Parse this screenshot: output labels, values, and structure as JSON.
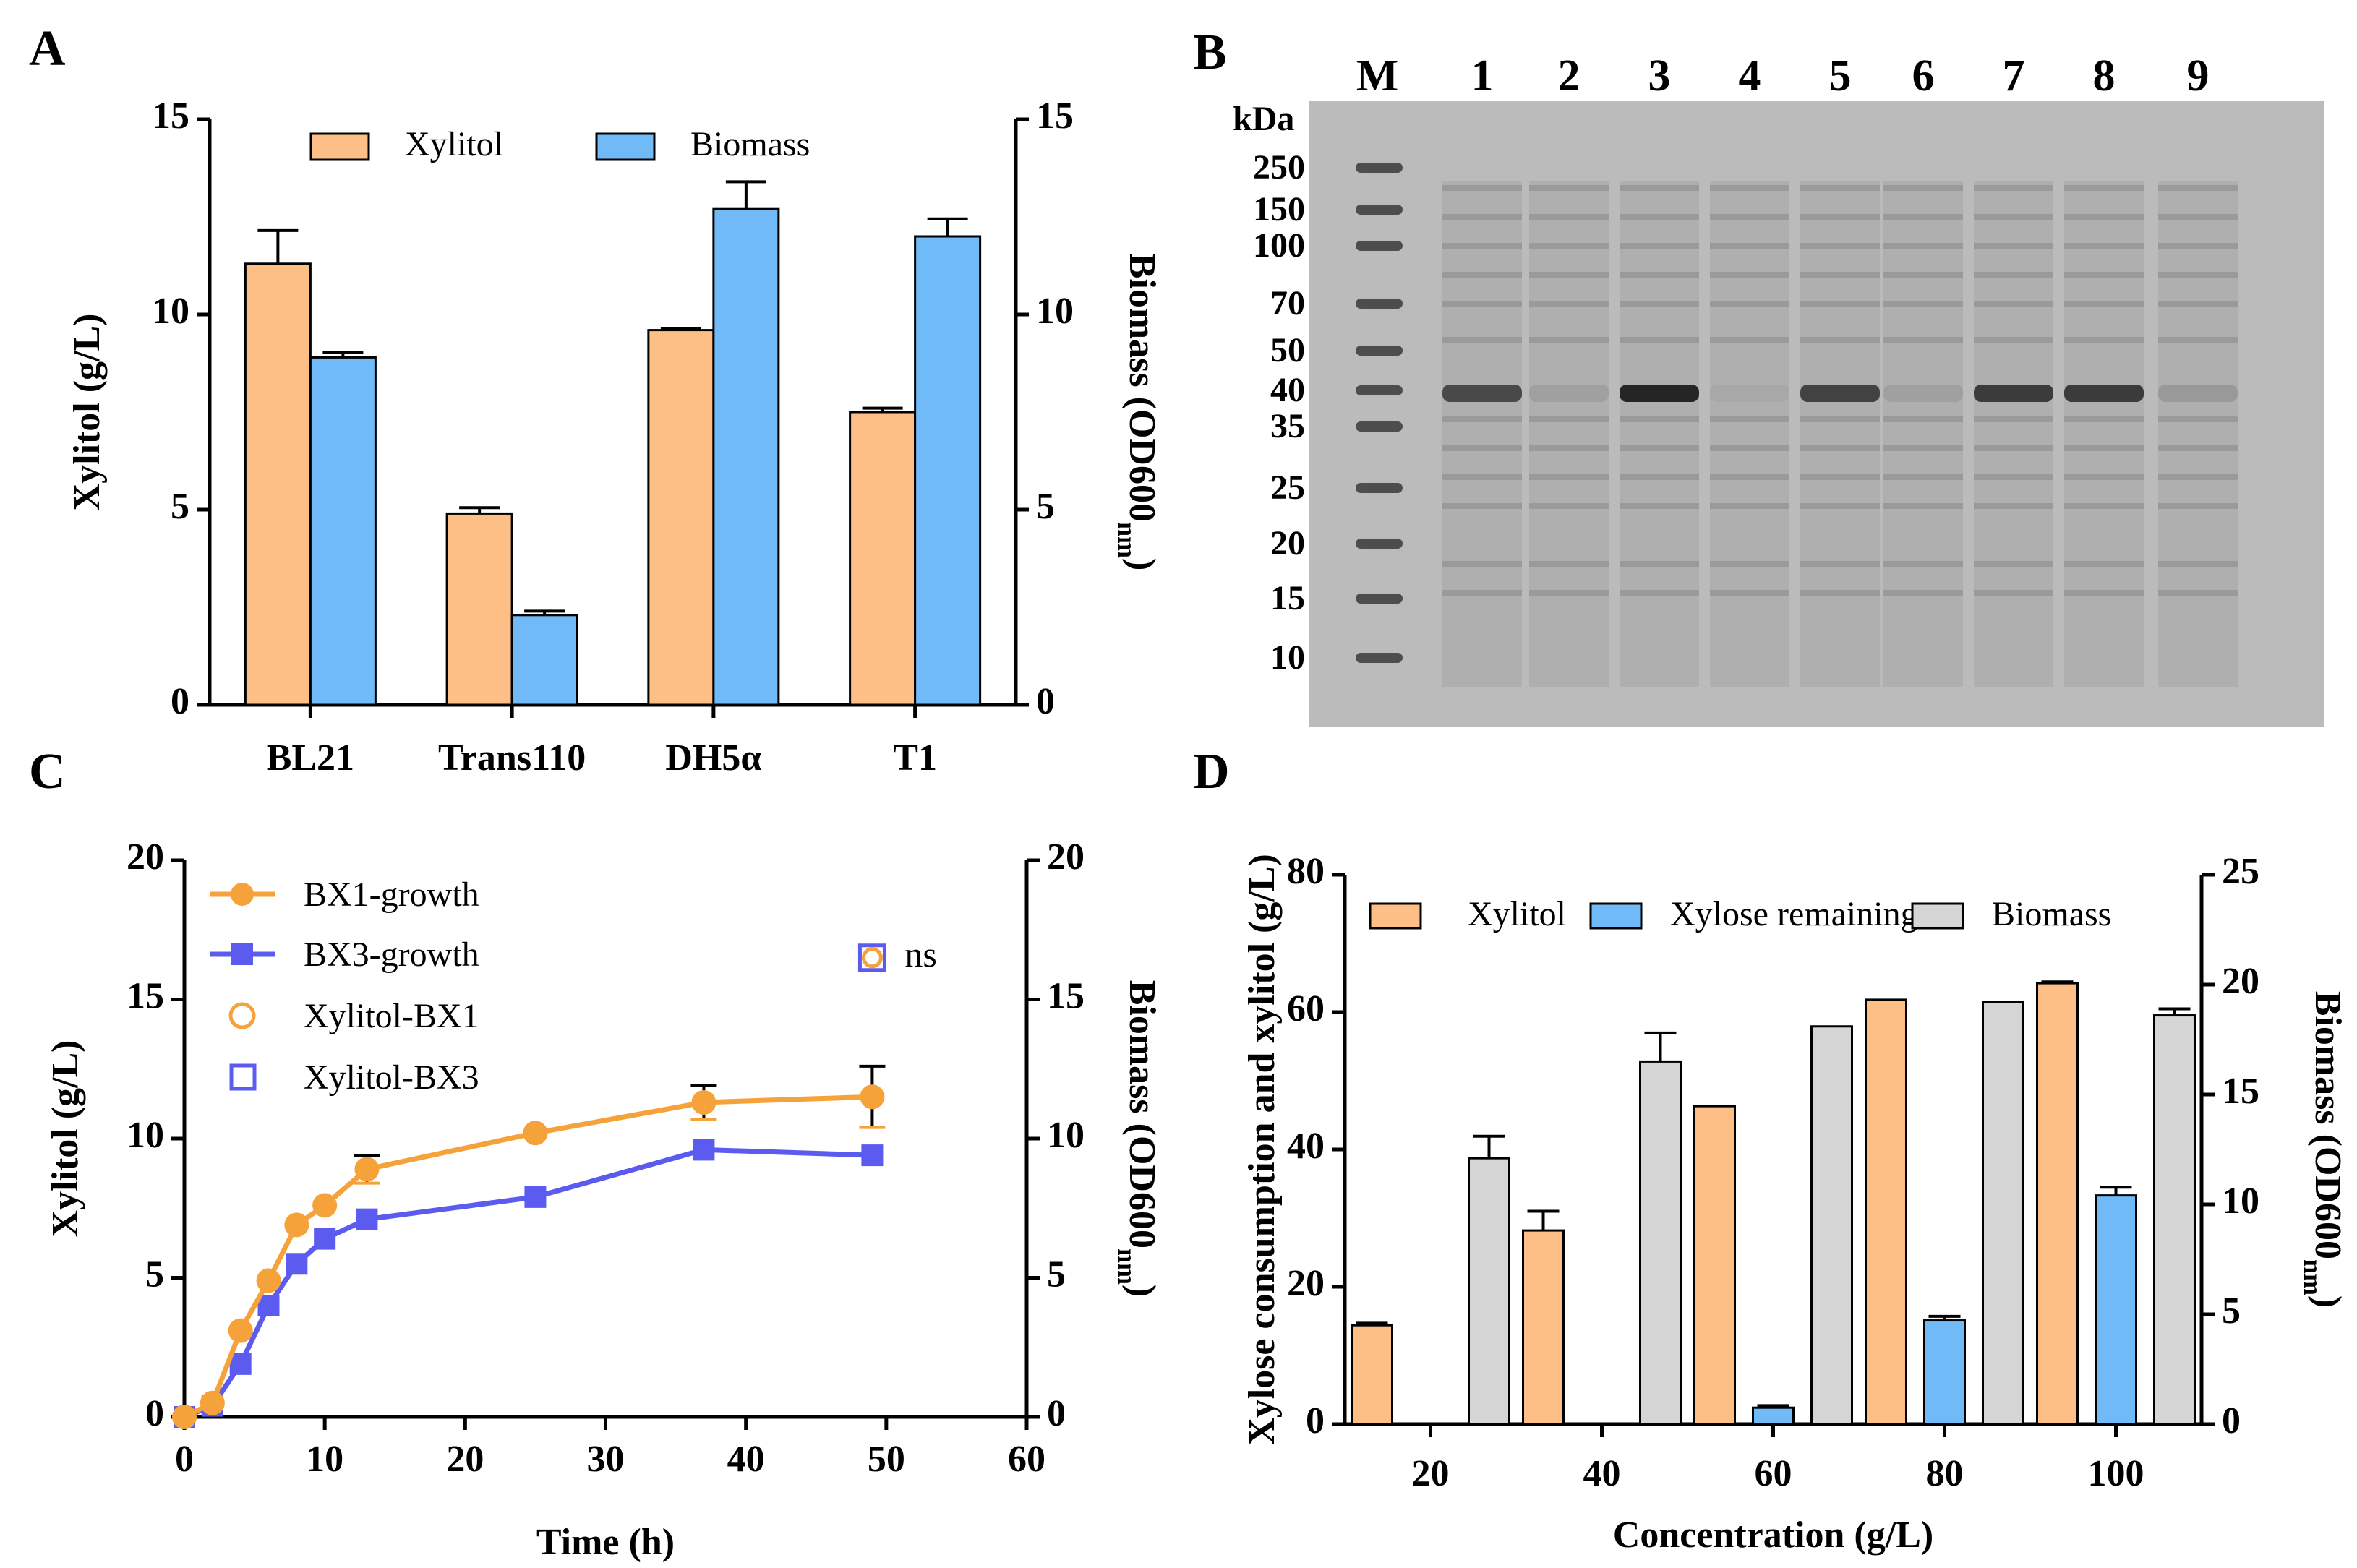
{
  "panels": {
    "A": "A",
    "B": "B",
    "C": "C",
    "D": "D"
  },
  "colors": {
    "xylitol": "#FDBF85",
    "biomass": "#70BBF7",
    "grey": "#D5D5D5",
    "orange": "#F6A23A",
    "blue": "#5B5BF0",
    "gel": "#BBBBBB",
    "band": "#3A3A3A"
  },
  "chart_data": [
    {
      "id": "A",
      "type": "bar",
      "categories": [
        "BL21",
        "Trans110",
        "DH5α",
        "T1"
      ],
      "series": [
        {
          "name": "Xylitol",
          "axis": "left",
          "values": [
            11.3,
            4.9,
            9.6,
            7.5
          ],
          "errors": [
            0.85,
            0.15,
            0.03,
            0.1
          ]
        },
        {
          "name": "Biomass",
          "axis": "right",
          "values": [
            8.9,
            2.3,
            12.7,
            12.0
          ],
          "errors": [
            0.12,
            0.1,
            0.7,
            0.45
          ]
        }
      ],
      "ylabel": "Xylitol (g/L)",
      "y2label": "Biomass (OD600",
      "y2label_sub": "nm",
      "y2label_end": ")",
      "ylim": [
        0,
        15
      ],
      "y2lim": [
        0,
        15
      ],
      "yticks": [
        "0",
        "5",
        "10",
        "15"
      ],
      "y2ticks": [
        "0",
        "5",
        "10",
        "15"
      ]
    },
    {
      "id": "B",
      "type": "gel",
      "lanes": [
        "M",
        "1",
        "2",
        "3",
        "4",
        "5",
        "6",
        "7",
        "8",
        "9"
      ],
      "unit_label": "kDa",
      "markers": [
        "250",
        "150",
        "100",
        "70",
        "50",
        "40",
        "35",
        "25",
        "20",
        "15",
        "10"
      ],
      "marker_kda": [
        250,
        150,
        100,
        70,
        50,
        40,
        35,
        25,
        20,
        15,
        10
      ],
      "target_band_kda": 40,
      "target_band_intensity": [
        0.7,
        0.1,
        0.95,
        0.05,
        0.75,
        0.1,
        0.8,
        0.8,
        0.15
      ]
    },
    {
      "id": "C",
      "type": "line",
      "xlabel": "Time (h)",
      "ylabel": "Xylitol (g/L)",
      "y2label": "Biomass (OD600",
      "y2label_sub": "nm",
      "y2label_end": ")",
      "xlim": [
        0,
        60
      ],
      "ylim": [
        0,
        20
      ],
      "y2lim": [
        0,
        20
      ],
      "xticks": [
        "0",
        "10",
        "20",
        "30",
        "40",
        "50",
        "60"
      ],
      "yticks": [
        "0",
        "5",
        "10",
        "15",
        "20"
      ],
      "y2ticks": [
        "0",
        "5",
        "10",
        "15",
        "20"
      ],
      "series": [
        {
          "name": "BX1-growth",
          "x": [
            0,
            2,
            4,
            6,
            8,
            10,
            13,
            25,
            37,
            49
          ],
          "y": [
            0.0,
            0.5,
            3.1,
            4.9,
            6.9,
            7.6,
            8.9,
            10.2,
            11.3,
            11.5
          ],
          "errors": [
            0,
            0,
            0,
            0,
            0,
            0,
            0.5,
            0,
            0.6,
            1.1
          ]
        },
        {
          "name": "BX3-growth",
          "x": [
            0,
            2,
            4,
            6,
            8,
            10,
            13,
            25,
            37,
            49
          ],
          "y": [
            0.0,
            0.4,
            1.9,
            4.0,
            5.5,
            6.4,
            7.1,
            7.9,
            9.6,
            9.4
          ],
          "errors": [
            0,
            0,
            0,
            0,
            0,
            0,
            0,
            0,
            0,
            0
          ]
        },
        {
          "name": "Xylitol-BX1",
          "x": [
            49
          ],
          "y": [
            16.5
          ]
        },
        {
          "name": "Xylitol-BX3",
          "x": [
            49
          ],
          "y": [
            16.5
          ]
        }
      ],
      "annotation": "ns"
    },
    {
      "id": "D",
      "type": "bar",
      "categories": [
        "20",
        "40",
        "60",
        "80",
        "100"
      ],
      "series": [
        {
          "name": "Xylitol",
          "axis": "left",
          "values": [
            14.4,
            28.2,
            46.3,
            61.8,
            64.2
          ],
          "errors": [
            0.3,
            2.8,
            0,
            0,
            0.2
          ]
        },
        {
          "name": "Xylose remaining",
          "axis": "left",
          "values": [
            0,
            0,
            2.4,
            15.1,
            33.3
          ],
          "errors": [
            0,
            0,
            0.3,
            0.6,
            1.2
          ]
        },
        {
          "name": "Biomass",
          "axis": "right",
          "values": [
            12.1,
            16.5,
            18.1,
            19.2,
            18.6
          ],
          "errors": [
            1.0,
            1.3,
            0,
            0,
            0.3
          ]
        }
      ],
      "xlabel": "Concentration (g/L)",
      "ylabel": "Xylose consumption and xylitol (g/L)",
      "y2label": "Biomass (OD600",
      "y2label_sub": "nm",
      "y2label_end": ")",
      "ylim": [
        0,
        80
      ],
      "y2lim": [
        0,
        25
      ],
      "yticks": [
        "0",
        "20",
        "40",
        "60",
        "80"
      ],
      "y2ticks": [
        "0",
        "5",
        "10",
        "15",
        "20",
        "25"
      ]
    }
  ]
}
